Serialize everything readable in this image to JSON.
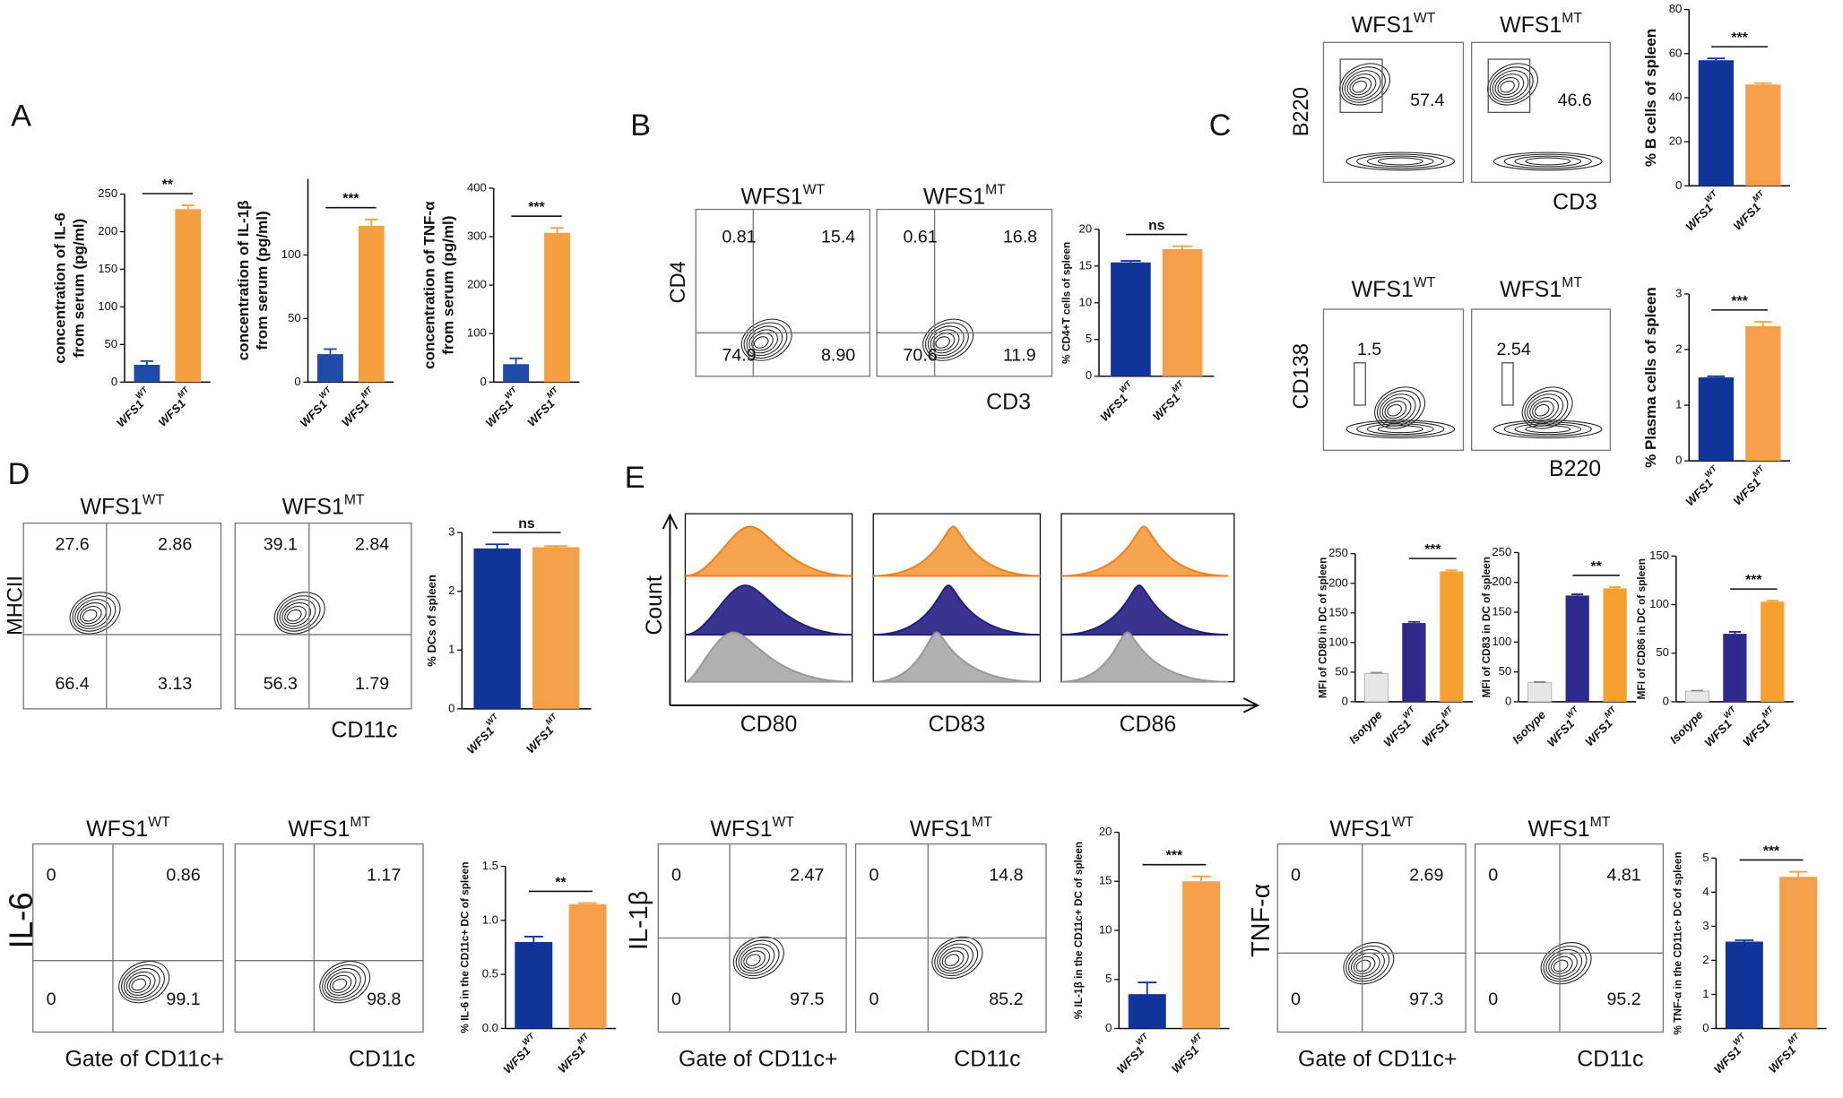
{
  "panel_labels": [
    "A",
    "B",
    "C",
    "D",
    "E"
  ],
  "chart_data": [
    {
      "type": "bar",
      "y_label": [
        "concentration of IL-6",
        "from serum (pg/ml)"
      ],
      "categories": [
        "WFS1",
        "WFS1"
      ],
      "category_superscripts": [
        "WT",
        "MT"
      ],
      "values": [
        23,
        230
      ],
      "errors": [
        5,
        5
      ],
      "colors": [
        "#1f4aa8",
        "#f5a040"
      ],
      "ylim": [
        0,
        250
      ],
      "yticks": [
        0,
        50,
        100,
        150,
        200,
        250
      ],
      "significance": "**"
    },
    {
      "type": "bar",
      "y_label": [
        "concentration of IL-1β",
        "from serum (pg/ml)"
      ],
      "categories": [
        "WFS1",
        "WFS1"
      ],
      "category_superscripts": [
        "WT",
        "MT"
      ],
      "values": [
        22,
        123
      ],
      "errors": [
        4,
        5
      ],
      "colors": [
        "#1f4aa8",
        "#f5a040"
      ],
      "ylim": [
        0,
        160
      ],
      "yticks": [
        0,
        50,
        100
      ],
      "significance": "***"
    },
    {
      "type": "bar",
      "y_label": [
        "concentration of TNF-α",
        "from serum (pg/ml)"
      ],
      "categories": [
        "WFS1",
        "WFS1"
      ],
      "category_superscripts": [
        "WT",
        "MT"
      ],
      "values": [
        37,
        308
      ],
      "errors": [
        12,
        10
      ],
      "colors": [
        "#1f4aa8",
        "#f5a040"
      ],
      "ylim": [
        0,
        400
      ],
      "yticks": [
        0,
        100,
        200,
        300,
        400
      ],
      "significance": "***"
    },
    {
      "type": "bar",
      "y_label": "% CD4+T cells of spleen",
      "categories": [
        "WFS1",
        "WFS1"
      ],
      "category_superscripts": [
        "WT",
        "MT"
      ],
      "values": [
        15.5,
        17.3
      ],
      "errors": [
        0.2,
        0.4
      ],
      "colors": [
        "#11349a",
        "#f4a04a"
      ],
      "ylim": [
        0,
        20
      ],
      "yticks": [
        0,
        5,
        10,
        15,
        20
      ],
      "significance": "ns"
    },
    {
      "type": "bar",
      "y_label": "% B cells of spleen",
      "categories": [
        "WFS1",
        "WFS1"
      ],
      "category_superscripts": [
        "WT",
        "MT"
      ],
      "values": [
        57,
        46
      ],
      "errors": [
        0.8,
        0.6
      ],
      "colors": [
        "#11349a",
        "#f4a04a"
      ],
      "ylim": [
        0,
        80
      ],
      "yticks": [
        0,
        20,
        40,
        60,
        80
      ],
      "significance": "***"
    },
    {
      "type": "bar",
      "y_label": "% Plasma cells of spleen",
      "categories": [
        "WFS1",
        "WFS1"
      ],
      "category_superscripts": [
        "WT",
        "MT"
      ],
      "values": [
        1.5,
        2.42
      ],
      "errors": [
        0.02,
        0.08
      ],
      "colors": [
        "#11349a",
        "#f4a04a"
      ],
      "ylim": [
        0,
        3
      ],
      "yticks": [
        0,
        1,
        2,
        3
      ],
      "significance": "***"
    },
    {
      "type": "bar",
      "y_label": "% DCs of spleen",
      "categories": [
        "WFS1",
        "WFS1"
      ],
      "category_superscripts": [
        "WT",
        "MT"
      ],
      "values": [
        2.73,
        2.75
      ],
      "errors": [
        0.07,
        0.02
      ],
      "colors": [
        "#11349a",
        "#f4a04a"
      ],
      "ylim": [
        0,
        3
      ],
      "yticks": [
        0,
        1,
        2,
        3
      ],
      "significance": "ns"
    },
    {
      "type": "bar",
      "y_label": "MFI of CD80 in DC of spleen",
      "categories": [
        "Isotype",
        "WFS1",
        "WFS1"
      ],
      "category_superscripts": [
        null,
        "WT",
        "MT"
      ],
      "values": [
        48,
        133,
        220
      ],
      "errors": [
        1,
        2,
        2
      ],
      "colors": [
        "#e6e6e6",
        "#2e2a8c",
        "#f5a030"
      ],
      "ylim": [
        0,
        250
      ],
      "yticks": [
        0,
        50,
        100,
        150,
        200,
        250
      ],
      "significance": "***"
    },
    {
      "type": "bar",
      "y_label": "MFI of CD83 in DC of spleen",
      "categories": [
        "Isotype",
        "WFS1",
        "WFS1"
      ],
      "category_superscripts": [
        null,
        "WT",
        "MT"
      ],
      "values": [
        32,
        178,
        190
      ],
      "errors": [
        1,
        2,
        2
      ],
      "colors": [
        "#e6e6e6",
        "#2e2a8c",
        "#f5a030"
      ],
      "ylim": [
        0,
        250
      ],
      "yticks": [
        0,
        50,
        100,
        150,
        200,
        250
      ],
      "significance": "**"
    },
    {
      "type": "bar",
      "y_label": "MFI of CD86 in DC of spleen",
      "categories": [
        "Isotype",
        "WFS1",
        "WFS1"
      ],
      "category_superscripts": [
        null,
        "WT",
        "MT"
      ],
      "values": [
        11,
        70,
        103
      ],
      "errors": [
        0.5,
        2,
        1
      ],
      "colors": [
        "#e6e6e6",
        "#2e2a8c",
        "#f5a030"
      ],
      "ylim": [
        0,
        150
      ],
      "yticks": [
        0,
        50,
        100,
        150
      ],
      "significance": "***"
    },
    {
      "type": "bar",
      "y_label": "% IL-6 in the CD11c+ DC of spleen",
      "categories": [
        "WFS1",
        "WFS1"
      ],
      "category_superscripts": [
        "WT",
        "MT"
      ],
      "values": [
        0.8,
        1.15
      ],
      "errors": [
        0.05,
        0.01
      ],
      "colors": [
        "#11349a",
        "#f4a04a"
      ],
      "ylim": [
        0,
        1.5
      ],
      "yticks": [
        {
          "value": 0,
          "label": "0.0"
        },
        {
          "value": 0.5,
          "label": "0.5"
        },
        {
          "value": 1,
          "label": "1.0"
        },
        {
          "value": 1.5,
          "label": "1.5"
        }
      ],
      "significance": "**"
    },
    {
      "type": "bar",
      "y_label": "% IL-1β in the CD11c+ DC of spleen",
      "categories": [
        "WFS1",
        "WFS1"
      ],
      "category_superscripts": [
        "WT",
        "MT"
      ],
      "values": [
        3.5,
        15
      ],
      "errors": [
        1.2,
        0.5
      ],
      "colors": [
        "#11349a",
        "#f4a04a"
      ],
      "ylim": [
        0,
        20
      ],
      "yticks": [
        0,
        5,
        10,
        15,
        20
      ],
      "significance": "***"
    },
    {
      "type": "bar",
      "y_label": "% TNF-α in the CD11c+ DC of spleen",
      "categories": [
        "WFS1",
        "WFS1"
      ],
      "category_superscripts": [
        "WT",
        "MT"
      ],
      "values": [
        2.55,
        4.45
      ],
      "errors": [
        0.04,
        0.15
      ],
      "colors": [
        "#11349a",
        "#f4a04a"
      ],
      "ylim": [
        0,
        5
      ],
      "yticks": [
        0,
        1,
        2,
        3,
        4,
        5
      ],
      "significance": "***"
    }
  ],
  "flow_groups": [
    {
      "y_label": "CD4",
      "x_labels": [
        "CD3"
      ],
      "plots": [
        {
          "title": "WFS1",
          "title_sup": "WT",
          "numbers": [
            "0.81",
            "15.4",
            "74.9",
            "8.90"
          ]
        },
        {
          "title": "WFS1",
          "title_sup": "MT",
          "numbers": [
            "0.61",
            "16.8",
            "70.6",
            "11.9"
          ]
        }
      ]
    },
    {
      "y_label": "B220",
      "x_labels": [
        "CD3"
      ],
      "plots": [
        {
          "title": "WFS1",
          "title_sup": "WT",
          "numbers": [
            "57.4"
          ]
        },
        {
          "title": "WFS1",
          "title_sup": "MT",
          "numbers": [
            "46.6"
          ]
        }
      ]
    },
    {
      "y_label": "CD138",
      "x_labels": [
        "B220"
      ],
      "plots": [
        {
          "title": "WFS1",
          "title_sup": "WT",
          "numbers": [
            "1.5"
          ]
        },
        {
          "title": "WFS1",
          "title_sup": "MT",
          "numbers": [
            "2.54"
          ]
        }
      ]
    },
    {
      "y_label": "MHCII",
      "x_labels": [
        "CD11c"
      ],
      "plots": [
        {
          "title": "WFS1",
          "title_sup": "WT",
          "numbers": [
            "27.6",
            "2.86",
            "66.4",
            "3.13"
          ]
        },
        {
          "title": "WFS1",
          "title_sup": "MT",
          "numbers": [
            "39.1",
            "2.84",
            "56.3",
            "1.79"
          ]
        }
      ]
    },
    {
      "y_label": "IL-6",
      "x_labels": [
        "Gate of CD11c+",
        "CD11c"
      ],
      "plots": [
        {
          "title": "WFS1",
          "title_sup": "WT",
          "numbers": [
            "0",
            "0.86",
            "0",
            "99.1"
          ]
        },
        {
          "title": "WFS1",
          "title_sup": "MT",
          "numbers": [
            "1.17",
            "98.8"
          ]
        }
      ]
    },
    {
      "y_label": "IL-1β",
      "x_labels": [
        "Gate of CD11c+",
        "CD11c"
      ],
      "plots": [
        {
          "title": "WFS1",
          "title_sup": "WT",
          "numbers": [
            "0",
            "2.47",
            "0",
            "97.5"
          ]
        },
        {
          "title": "WFS1",
          "title_sup": "MT",
          "numbers": [
            "0",
            "14.8",
            "0",
            "85.2"
          ]
        }
      ]
    },
    {
      "y_label": "TNF-α",
      "x_labels": [
        "Gate of CD11c+",
        "CD11c"
      ],
      "plots": [
        {
          "title": "WFS1",
          "title_sup": "WT",
          "numbers": [
            "0",
            "2.69",
            "0",
            "97.3"
          ]
        },
        {
          "title": "WFS1",
          "title_sup": "MT",
          "numbers": [
            "0",
            "4.81",
            "0",
            "95.2"
          ]
        }
      ]
    }
  ],
  "histograms": {
    "y_label": "Count",
    "x_labels": [
      "CD80",
      "CD83",
      "CD86"
    ]
  }
}
